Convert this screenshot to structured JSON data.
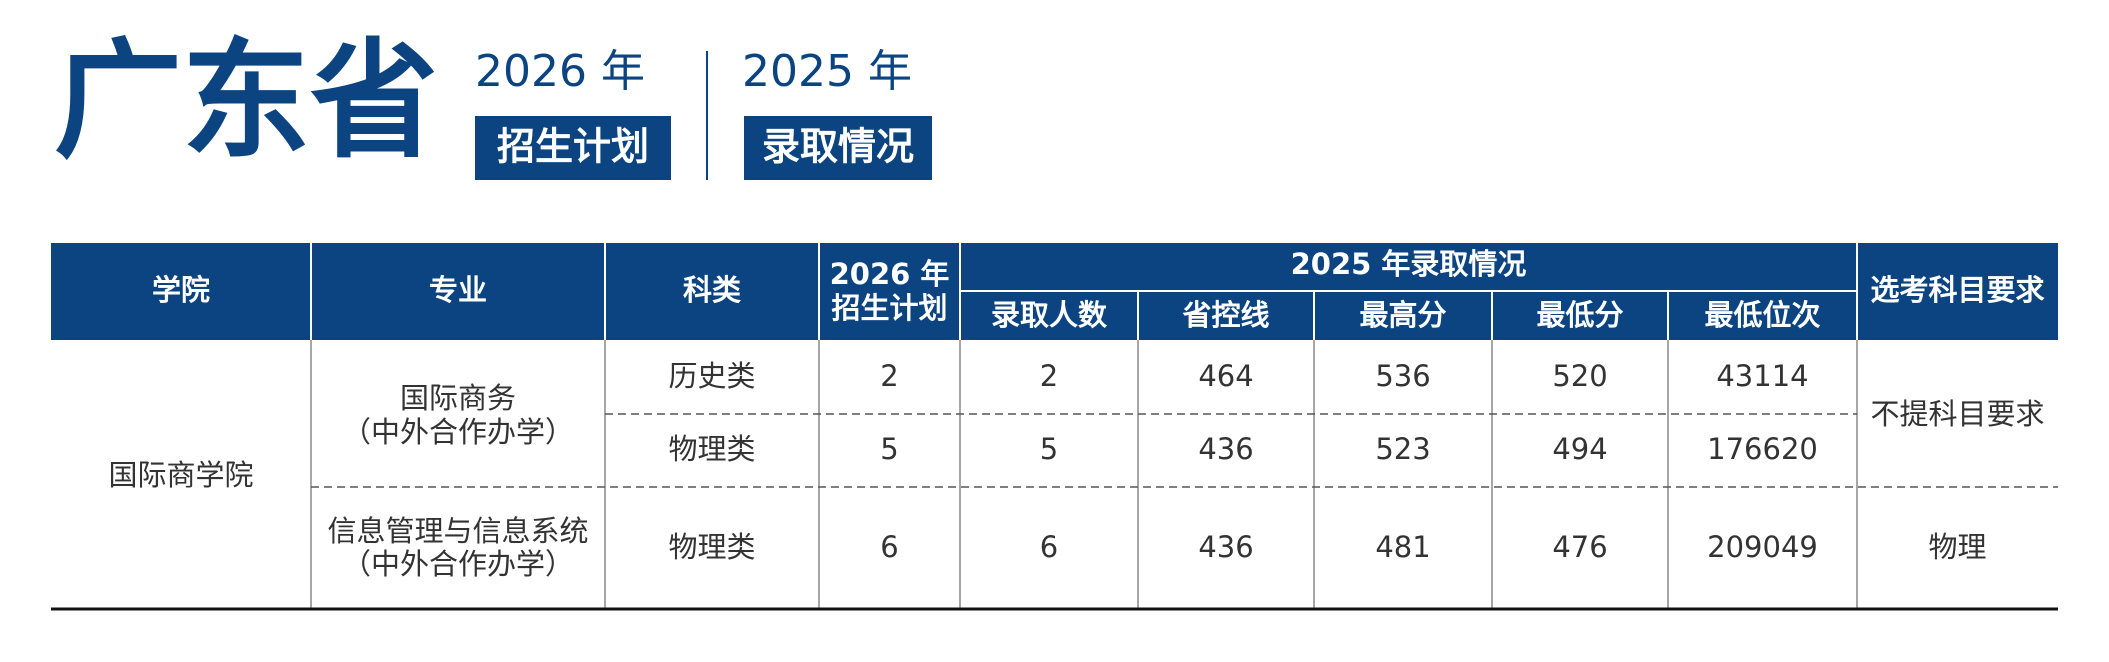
{
  "header": {
    "title": "广东省",
    "plan_year": "2026 年",
    "plan_label": "招生计划",
    "admit_year": "2025 年",
    "admit_label": "录取情况"
  },
  "table": {
    "columns": {
      "school": "学院",
      "major": "专业",
      "category": "科类",
      "plan": [
        "2026 年",
        "招生计划"
      ],
      "group": "2025 年录取情况",
      "sub": [
        "录取人数",
        "省控线",
        "最高分",
        "最低分",
        "最低位次"
      ],
      "requirement": "选考科目要求"
    },
    "school": "国际商学院",
    "majors": [
      [
        "国际商务",
        "（中外合作办学）"
      ],
      [
        "信息管理与信息系统",
        "（中外合作办学）"
      ]
    ],
    "requirements": [
      "不提科目要求",
      "物理"
    ],
    "rows": [
      [
        "历史类",
        2,
        2,
        464,
        536,
        520,
        43114
      ],
      [
        "物理类",
        5,
        5,
        436,
        523,
        494,
        176620
      ],
      [
        "物理类",
        6,
        6,
        436,
        481,
        476,
        209049
      ]
    ]
  }
}
